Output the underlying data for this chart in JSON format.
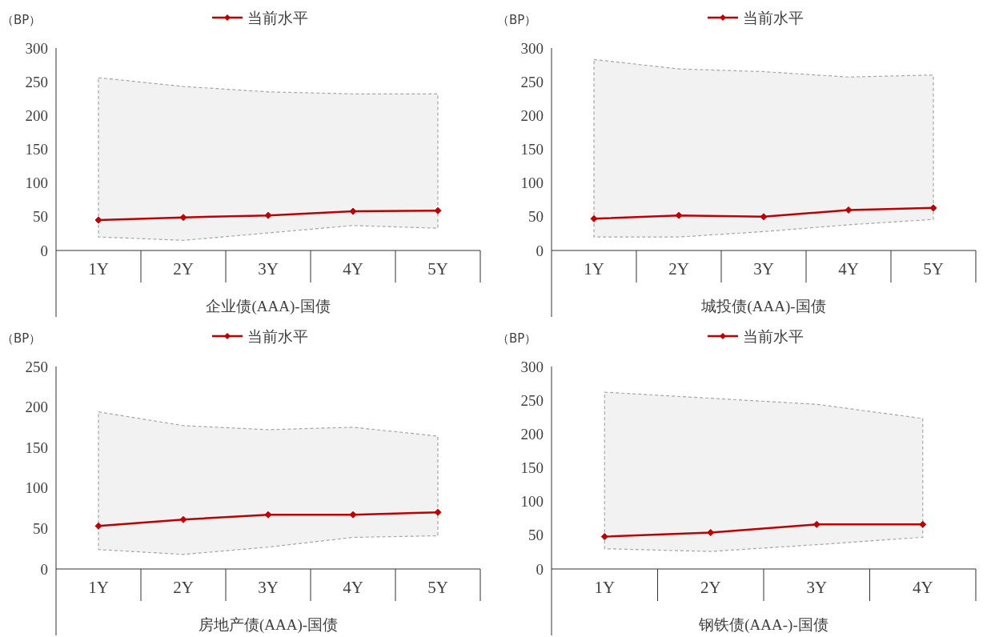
{
  "chart_data": [
    {
      "type": "line",
      "ylabel": "（BP）",
      "xlabel": "企业债(AAA)-国债",
      "categories": [
        "1Y",
        "2Y",
        "3Y",
        "4Y",
        "5Y"
      ],
      "ylim": [
        0,
        300
      ],
      "yticks": [
        0,
        50,
        100,
        150,
        200,
        250,
        300
      ],
      "legend": "top",
      "marker": "diamond",
      "grid": false,
      "series": [
        {
          "name": "当前水平",
          "color": "#c00000",
          "values": [
            45,
            49,
            52,
            58,
            59
          ],
          "lower": [
            20,
            15,
            26,
            37,
            33
          ],
          "upper": [
            256,
            243,
            235,
            232,
            232
          ]
        }
      ]
    },
    {
      "type": "line",
      "ylabel": "（BP）",
      "xlabel": "城投债(AAA)-国债",
      "categories": [
        "1Y",
        "2Y",
        "3Y",
        "4Y",
        "5Y"
      ],
      "ylim": [
        0,
        300
      ],
      "yticks": [
        0,
        50,
        100,
        150,
        200,
        250,
        300
      ],
      "legend": "top",
      "marker": "diamond",
      "grid": false,
      "series": [
        {
          "name": "当前水平",
          "color": "#c00000",
          "values": [
            47,
            52,
            50,
            60,
            63
          ],
          "lower": [
            20,
            20,
            28,
            38,
            46
          ],
          "upper": [
            283,
            269,
            265,
            257,
            260
          ]
        }
      ]
    },
    {
      "type": "line",
      "ylabel": "（BP）",
      "xlabel": "房地产债(AAA)-国债",
      "categories": [
        "1Y",
        "2Y",
        "3Y",
        "4Y",
        "5Y"
      ],
      "ylim": [
        0,
        250
      ],
      "yticks": [
        0,
        50,
        100,
        150,
        200,
        250
      ],
      "legend": "top",
      "marker": "diamond",
      "grid": false,
      "series": [
        {
          "name": "当前水平",
          "color": "#c00000",
          "values": [
            53,
            61,
            67,
            67,
            70
          ],
          "lower": [
            24,
            18,
            27,
            39,
            41
          ],
          "upper": [
            194,
            177,
            172,
            175,
            164
          ]
        }
      ]
    },
    {
      "type": "line",
      "ylabel": "（BP）",
      "xlabel": "钢铁债(AAA-)-国债",
      "categories": [
        "1Y",
        "2Y",
        "3Y",
        "4Y"
      ],
      "ylim": [
        0,
        300
      ],
      "yticks": [
        0,
        50,
        100,
        150,
        200,
        250,
        300
      ],
      "legend": "top",
      "marker": "diamond",
      "grid": false,
      "series": [
        {
          "name": "当前水平",
          "color": "#c00000",
          "values": [
            48,
            54,
            66,
            66
          ],
          "lower": [
            30,
            26,
            36,
            47
          ],
          "upper": [
            262,
            253,
            244,
            223
          ]
        }
      ]
    }
  ]
}
